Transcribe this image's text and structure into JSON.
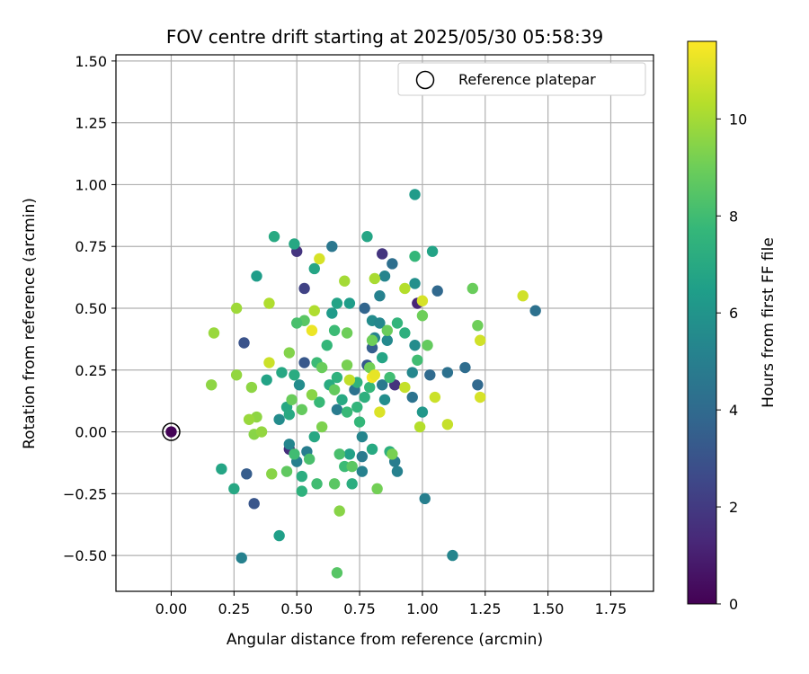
{
  "chart_data": {
    "type": "scatter",
    "title": "FOV centre drift starting at 2025/05/30 05:58:39",
    "xlabel": "Angular distance from reference (arcmin)",
    "ylabel": "Rotation from reference (arcmin)",
    "xlim": [
      -0.22,
      1.92
    ],
    "ylim": [
      -0.645,
      1.525
    ],
    "xticks": [
      "0.00",
      "0.25",
      "0.50",
      "0.75",
      "1.00",
      "1.25",
      "1.50",
      "1.75"
    ],
    "xtick_values": [
      0,
      0.25,
      0.5,
      0.75,
      1.0,
      1.25,
      1.5,
      1.75
    ],
    "yticks": [
      "−0.50",
      "−0.25",
      "0.00",
      "0.25",
      "0.50",
      "0.75",
      "1.00",
      "1.25",
      "1.50"
    ],
    "ytick_values": [
      -0.5,
      -0.25,
      0,
      0.25,
      0.5,
      0.75,
      1.0,
      1.25,
      1.5
    ],
    "grid": true,
    "legend": {
      "label": "Reference platepar",
      "placement": "top-right"
    },
    "reference_point": {
      "x": 0.0,
      "y": 0.0
    },
    "colorbar": {
      "label": "Hours from first FF file",
      "colormap": "viridis",
      "range": [
        0,
        11.6
      ],
      "ticks": [
        "0",
        "2",
        "4",
        "6",
        "8",
        "10"
      ],
      "tick_values": [
        0,
        2,
        4,
        6,
        8,
        10
      ],
      "stops": [
        "#440154",
        "#482878",
        "#3e4989",
        "#31688e",
        "#26828e",
        "#1f9e89",
        "#35b779",
        "#6ece58",
        "#b5de2b",
        "#fde725"
      ]
    },
    "series": [
      {
        "points": [
          {
            "x": 0.0,
            "y": 0.0,
            "c": 0.1
          },
          {
            "x": 0.47,
            "y": -0.07,
            "c": 1.5
          },
          {
            "x": 0.5,
            "y": 0.73,
            "c": 1.8
          },
          {
            "x": 0.53,
            "y": 0.58,
            "c": 2.3
          },
          {
            "x": 0.84,
            "y": 0.72,
            "c": 1.8
          },
          {
            "x": 0.98,
            "y": 0.52,
            "c": 1.2
          },
          {
            "x": 0.89,
            "y": 0.19,
            "c": 1.7
          },
          {
            "x": 0.3,
            "y": -0.17,
            "c": 3.4
          },
          {
            "x": 0.33,
            "y": -0.29,
            "c": 3.1
          },
          {
            "x": 0.29,
            "y": 0.36,
            "c": 3.0
          },
          {
            "x": 0.53,
            "y": 0.28,
            "c": 3.2
          },
          {
            "x": 0.64,
            "y": 0.75,
            "c": 4.6
          },
          {
            "x": 0.77,
            "y": 0.5,
            "c": 3.8
          },
          {
            "x": 0.8,
            "y": 0.34,
            "c": 3.5
          },
          {
            "x": 0.78,
            "y": 0.27,
            "c": 3.3
          },
          {
            "x": 0.88,
            "y": 0.68,
            "c": 4.2
          },
          {
            "x": 1.06,
            "y": 0.57,
            "c": 3.9
          },
          {
            "x": 1.03,
            "y": 0.23,
            "c": 4.0
          },
          {
            "x": 1.1,
            "y": 0.24,
            "c": 4.3
          },
          {
            "x": 1.17,
            "y": 0.26,
            "c": 4.1
          },
          {
            "x": 1.22,
            "y": 0.19,
            "c": 3.9
          },
          {
            "x": 1.45,
            "y": 0.49,
            "c": 4.3
          },
          {
            "x": 0.73,
            "y": 0.17,
            "c": 4.4
          },
          {
            "x": 0.84,
            "y": 0.19,
            "c": 4.7
          },
          {
            "x": 0.96,
            "y": 0.14,
            "c": 4.4
          },
          {
            "x": 0.89,
            "y": -0.12,
            "c": 4.9
          },
          {
            "x": 0.9,
            "y": -0.16,
            "c": 5.1
          },
          {
            "x": 0.76,
            "y": -0.1,
            "c": 4.8
          },
          {
            "x": 0.76,
            "y": -0.16,
            "c": 5.1
          },
          {
            "x": 0.28,
            "y": -0.51,
            "c": 5.1
          },
          {
            "x": 1.12,
            "y": -0.5,
            "c": 5.3
          },
          {
            "x": 1.01,
            "y": -0.27,
            "c": 5.0
          },
          {
            "x": 0.5,
            "y": -0.12,
            "c": 5.0
          },
          {
            "x": 0.54,
            "y": -0.08,
            "c": 4.9
          },
          {
            "x": 0.47,
            "y": -0.05,
            "c": 5.3
          },
          {
            "x": 0.66,
            "y": 0.09,
            "c": 4.8
          },
          {
            "x": 0.76,
            "y": -0.02,
            "c": 5.3
          },
          {
            "x": 0.81,
            "y": 0.38,
            "c": 5.2
          },
          {
            "x": 0.83,
            "y": 0.55,
            "c": 5.1
          },
          {
            "x": 0.85,
            "y": 0.63,
            "c": 5.3
          },
          {
            "x": 0.8,
            "y": 0.45,
            "c": 5.6
          },
          {
            "x": 0.83,
            "y": 0.44,
            "c": 5.4
          },
          {
            "x": 0.86,
            "y": 0.37,
            "c": 5.5
          },
          {
            "x": 0.97,
            "y": 0.35,
            "c": 5.6
          },
          {
            "x": 0.96,
            "y": 0.24,
            "c": 5.4
          },
          {
            "x": 0.97,
            "y": 0.6,
            "c": 5.8
          },
          {
            "x": 0.51,
            "y": 0.19,
            "c": 5.6
          },
          {
            "x": 0.43,
            "y": 0.05,
            "c": 5.6
          },
          {
            "x": 1.0,
            "y": 0.08,
            "c": 6.1
          },
          {
            "x": 0.85,
            "y": 0.13,
            "c": 5.7
          },
          {
            "x": 0.97,
            "y": 0.96,
            "c": 6.3
          },
          {
            "x": 0.34,
            "y": 0.63,
            "c": 6.4
          },
          {
            "x": 0.43,
            "y": -0.42,
            "c": 6.5
          },
          {
            "x": 0.78,
            "y": 0.79,
            "c": 6.8
          },
          {
            "x": 1.04,
            "y": 0.73,
            "c": 6.7
          },
          {
            "x": 0.49,
            "y": 0.76,
            "c": 6.9
          },
          {
            "x": 0.41,
            "y": 0.79,
            "c": 7.0
          },
          {
            "x": 0.57,
            "y": 0.66,
            "c": 6.8
          },
          {
            "x": 0.64,
            "y": 0.48,
            "c": 6.3
          },
          {
            "x": 0.66,
            "y": 0.52,
            "c": 6.7
          },
          {
            "x": 0.71,
            "y": 0.52,
            "c": 6.4
          },
          {
            "x": 0.2,
            "y": -0.15,
            "c": 6.8
          },
          {
            "x": 0.25,
            "y": -0.23,
            "c": 6.9
          },
          {
            "x": 0.38,
            "y": 0.21,
            "c": 6.7
          },
          {
            "x": 0.44,
            "y": 0.24,
            "c": 6.9
          },
          {
            "x": 0.49,
            "y": 0.23,
            "c": 7.1
          },
          {
            "x": 0.46,
            "y": 0.1,
            "c": 6.9
          },
          {
            "x": 0.47,
            "y": 0.07,
            "c": 7.0
          },
          {
            "x": 0.52,
            "y": -0.18,
            "c": 7.2
          },
          {
            "x": 0.52,
            "y": -0.24,
            "c": 7.4
          },
          {
            "x": 0.57,
            "y": -0.02,
            "c": 6.9
          },
          {
            "x": 0.63,
            "y": 0.19,
            "c": 7.1
          },
          {
            "x": 0.68,
            "y": 0.13,
            "c": 7.0
          },
          {
            "x": 0.71,
            "y": -0.09,
            "c": 6.6
          },
          {
            "x": 0.72,
            "y": -0.21,
            "c": 7.2
          },
          {
            "x": 0.8,
            "y": -0.07,
            "c": 7.0
          },
          {
            "x": 0.84,
            "y": 0.3,
            "c": 6.8
          },
          {
            "x": 0.87,
            "y": -0.08,
            "c": 7.3
          },
          {
            "x": 0.93,
            "y": 0.4,
            "c": 7.3
          },
          {
            "x": 0.9,
            "y": 0.44,
            "c": 7.6
          },
          {
            "x": 0.97,
            "y": 0.71,
            "c": 7.7
          },
          {
            "x": 0.58,
            "y": 0.28,
            "c": 7.9
          },
          {
            "x": 0.59,
            "y": 0.12,
            "c": 7.8
          },
          {
            "x": 0.62,
            "y": 0.35,
            "c": 7.7
          },
          {
            "x": 0.65,
            "y": 0.41,
            "c": 7.9
          },
          {
            "x": 0.66,
            "y": 0.22,
            "c": 7.4
          },
          {
            "x": 0.75,
            "y": 0.04,
            "c": 7.7
          },
          {
            "x": 0.74,
            "y": 0.2,
            "c": 7.5
          },
          {
            "x": 0.77,
            "y": 0.14,
            "c": 7.3
          },
          {
            "x": 0.79,
            "y": 0.18,
            "c": 7.7
          },
          {
            "x": 0.74,
            "y": 0.1,
            "c": 7.6
          },
          {
            "x": 0.7,
            "y": 0.08,
            "c": 7.8
          },
          {
            "x": 0.87,
            "y": 0.22,
            "c": 8.0
          },
          {
            "x": 0.98,
            "y": 0.29,
            "c": 8.0
          },
          {
            "x": 0.69,
            "y": -0.14,
            "c": 7.9
          },
          {
            "x": 0.67,
            "y": -0.09,
            "c": 8.2
          },
          {
            "x": 0.72,
            "y": -0.14,
            "c": 8.6
          },
          {
            "x": 0.55,
            "y": -0.11,
            "c": 8.2
          },
          {
            "x": 0.49,
            "y": -0.09,
            "c": 8.0
          },
          {
            "x": 0.58,
            "y": -0.21,
            "c": 8.0
          },
          {
            "x": 0.65,
            "y": -0.21,
            "c": 8.6
          },
          {
            "x": 0.66,
            "y": -0.57,
            "c": 8.5
          },
          {
            "x": 0.46,
            "y": -0.16,
            "c": 8.7
          },
          {
            "x": 0.52,
            "y": 0.09,
            "c": 8.8
          },
          {
            "x": 0.48,
            "y": 0.13,
            "c": 8.9
          },
          {
            "x": 0.53,
            "y": 0.45,
            "c": 8.6
          },
          {
            "x": 0.5,
            "y": 0.44,
            "c": 8.2
          },
          {
            "x": 0.6,
            "y": 0.26,
            "c": 8.9
          },
          {
            "x": 0.65,
            "y": 0.17,
            "c": 8.8
          },
          {
            "x": 0.7,
            "y": 0.4,
            "c": 9.0
          },
          {
            "x": 0.7,
            "y": 0.27,
            "c": 9.2
          },
          {
            "x": 0.79,
            "y": 0.26,
            "c": 9.1
          },
          {
            "x": 0.8,
            "y": 0.37,
            "c": 9.0
          },
          {
            "x": 0.86,
            "y": 0.41,
            "c": 8.9
          },
          {
            "x": 1.0,
            "y": 0.47,
            "c": 9.0
          },
          {
            "x": 1.02,
            "y": 0.35,
            "c": 8.8
          },
          {
            "x": 1.2,
            "y": 0.58,
            "c": 8.9
          },
          {
            "x": 1.22,
            "y": 0.43,
            "c": 9.0
          },
          {
            "x": 0.88,
            "y": -0.09,
            "c": 9.2
          },
          {
            "x": 0.82,
            "y": -0.23,
            "c": 9.1
          },
          {
            "x": 0.67,
            "y": -0.32,
            "c": 9.5
          },
          {
            "x": 0.4,
            "y": -0.17,
            "c": 9.5
          },
          {
            "x": 0.47,
            "y": 0.32,
            "c": 9.4
          },
          {
            "x": 0.6,
            "y": 0.02,
            "c": 9.3
          },
          {
            "x": 0.56,
            "y": 0.15,
            "c": 9.5
          },
          {
            "x": 0.32,
            "y": 0.18,
            "c": 9.6
          },
          {
            "x": 0.33,
            "y": -0.01,
            "c": 9.5
          },
          {
            "x": 0.34,
            "y": 0.06,
            "c": 9.6
          },
          {
            "x": 0.31,
            "y": 0.05,
            "c": 9.8
          },
          {
            "x": 0.36,
            "y": 0.0,
            "c": 9.7
          },
          {
            "x": 0.16,
            "y": 0.19,
            "c": 9.6
          },
          {
            "x": 0.17,
            "y": 0.4,
            "c": 9.8
          },
          {
            "x": 0.26,
            "y": 0.23,
            "c": 9.7
          },
          {
            "x": 0.26,
            "y": 0.5,
            "c": 9.9
          },
          {
            "x": 0.39,
            "y": 0.52,
            "c": 10.2
          },
          {
            "x": 0.57,
            "y": 0.49,
            "c": 10.2
          },
          {
            "x": 0.69,
            "y": 0.61,
            "c": 10.0
          },
          {
            "x": 0.81,
            "y": 0.62,
            "c": 10.1
          },
          {
            "x": 0.93,
            "y": 0.58,
            "c": 10.3
          },
          {
            "x": 0.71,
            "y": 0.21,
            "c": 10.5
          },
          {
            "x": 0.99,
            "y": 0.02,
            "c": 10.3
          },
          {
            "x": 1.05,
            "y": 0.14,
            "c": 10.7
          },
          {
            "x": 1.1,
            "y": 0.03,
            "c": 10.6
          },
          {
            "x": 1.23,
            "y": 0.37,
            "c": 10.8
          },
          {
            "x": 1.23,
            "y": 0.14,
            "c": 10.9
          },
          {
            "x": 1.4,
            "y": 0.55,
            "c": 10.8
          },
          {
            "x": 1.0,
            "y": 0.53,
            "c": 10.9
          },
          {
            "x": 0.93,
            "y": 0.18,
            "c": 10.6
          },
          {
            "x": 0.83,
            "y": 0.08,
            "c": 11.0
          },
          {
            "x": 0.59,
            "y": 0.7,
            "c": 10.9
          },
          {
            "x": 0.39,
            "y": 0.28,
            "c": 10.7
          },
          {
            "x": 0.56,
            "y": 0.41,
            "c": 11.3
          },
          {
            "x": 0.8,
            "y": 0.22,
            "c": 11.5
          },
          {
            "x": 0.81,
            "y": 0.23,
            "c": 11.2
          }
        ]
      }
    ]
  }
}
